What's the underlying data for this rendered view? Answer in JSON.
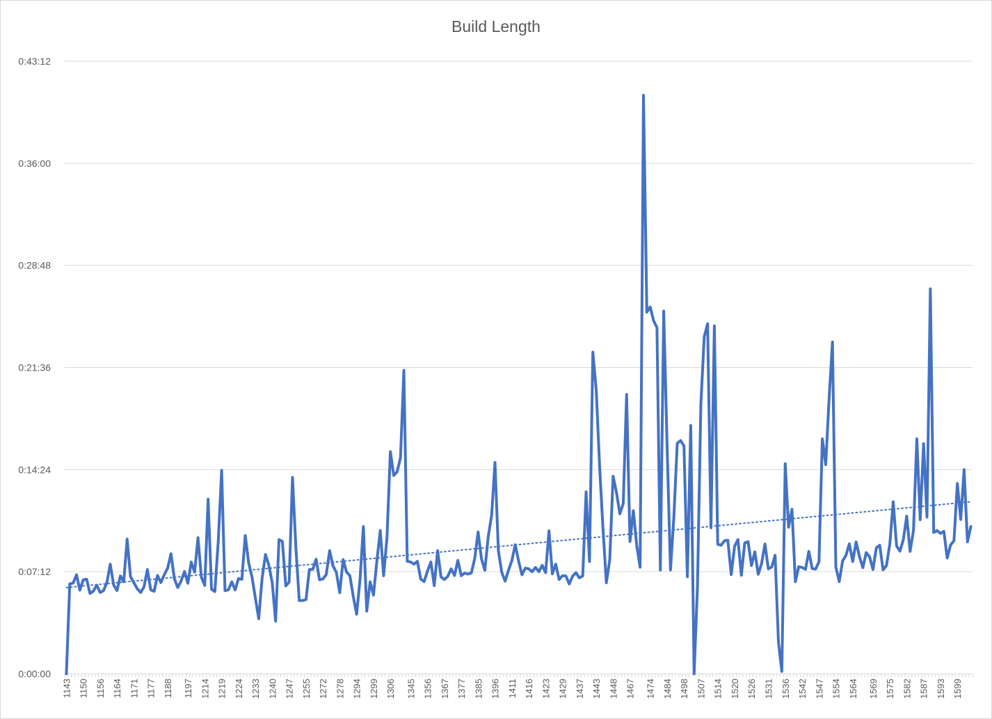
{
  "chart_data": {
    "type": "line",
    "title": "Build Length",
    "xlabel": "",
    "ylabel": "",
    "ylim_seconds": [
      0,
      2592
    ],
    "y_ticks": [
      "0:00:00",
      "0:07:12",
      "0:14:24",
      "0:21:36",
      "0:28:48",
      "0:36:00",
      "0:43:12"
    ],
    "x_tick_labels": [
      "1143",
      "1150",
      "1156",
      "1164",
      "1171",
      "1177",
      "1188",
      "1197",
      "1214",
      "1219",
      "1224",
      "1233",
      "1240",
      "1247",
      "1255",
      "1272",
      "1278",
      "1294",
      "1299",
      "1306",
      "1345",
      "1356",
      "1367",
      "1377",
      "1385",
      "1396",
      "1411",
      "1416",
      "1423",
      "1429",
      "1437",
      "1443",
      "1448",
      "1467",
      "1474",
      "1484",
      "1498",
      "1507",
      "1514",
      "1520",
      "1526",
      "1531",
      "1536",
      "1542",
      "1547",
      "1554",
      "1564",
      "1569",
      "1575",
      "1582",
      "1587",
      "1593",
      "1599"
    ],
    "grid": "horizontal",
    "legend": "none",
    "trendline": {
      "type": "linear",
      "style": "dotted",
      "start": "0:06:05",
      "end": "0:12:08"
    },
    "series_color": "#4472C4",
    "series": [
      {
        "values": [
          "0:00:00",
          "0:06:20",
          "0:06:24",
          "0:06:59",
          "0:05:54",
          "0:06:38",
          "0:06:40",
          "0:05:40",
          "0:05:50",
          "0:06:15",
          "0:05:44",
          "0:05:52",
          "0:06:26",
          "0:07:44",
          "0:06:16",
          "0:05:52",
          "0:06:54",
          "0:06:30",
          "0:09:30",
          "0:06:51",
          "0:06:25",
          "0:06:00",
          "0:05:44",
          "0:06:08",
          "0:07:21",
          "0:05:55",
          "0:05:49",
          "0:06:56",
          "0:06:26",
          "0:06:59",
          "0:07:27",
          "0:08:28",
          "0:06:42",
          "0:06:05",
          "0:06:33",
          "0:07:13",
          "0:06:23",
          "0:07:53",
          "0:07:10",
          "0:09:36",
          "0:06:48",
          "0:06:14",
          "0:12:19",
          "0:05:58",
          "0:05:48",
          "0:09:21",
          "0:14:21",
          "0:05:52",
          "0:05:55",
          "0:06:29",
          "0:05:55",
          "0:06:43",
          "0:06:40",
          "0:09:45",
          "0:07:50",
          "0:06:50",
          "0:05:21",
          "0:03:53",
          "0:06:45",
          "0:08:25",
          "0:07:39",
          "0:06:25",
          "0:03:43",
          "0:09:28",
          "0:09:20",
          "0:06:12",
          "0:06:28",
          "0:13:51",
          "0:08:55",
          "0:05:10",
          "0:05:10",
          "0:05:14",
          "0:07:21",
          "0:07:22",
          "0:08:05",
          "0:06:38",
          "0:06:41",
          "0:07:00",
          "0:08:41",
          "0:07:37",
          "0:07:09",
          "0:05:43",
          "0:08:03",
          "0:07:11",
          "0:06:55",
          "0:05:28",
          "0:04:12",
          "0:06:37",
          "0:10:23",
          "0:04:25",
          "0:06:29",
          "0:05:33",
          "0:07:57",
          "0:10:06",
          "0:06:55",
          "0:09:37",
          "0:15:40",
          "0:13:59",
          "0:14:15",
          "0:15:14",
          "0:21:24",
          "0:07:56",
          "0:07:53",
          "0:07:44",
          "0:07:56",
          "0:06:41",
          "0:06:30",
          "0:07:15",
          "0:07:53",
          "0:06:13",
          "0:08:41",
          "0:06:50",
          "0:06:39",
          "0:06:52",
          "0:07:24",
          "0:06:56",
          "0:08:00",
          "0:06:55",
          "0:07:06",
          "0:07:02",
          "0:07:07",
          "0:08:08",
          "0:10:00",
          "0:08:06",
          "0:07:18",
          "0:09:41",
          "0:11:10",
          "0:14:54",
          "0:08:41",
          "0:07:10",
          "0:06:32",
          "0:07:18",
          "0:07:59",
          "0:09:06",
          "0:07:57",
          "0:06:59",
          "0:07:27",
          "0:07:24",
          "0:07:12",
          "0:07:30",
          "0:07:12",
          "0:07:39",
          "0:07:08",
          "0:10:05",
          "0:07:03",
          "0:07:44",
          "0:06:39",
          "0:06:55",
          "0:06:54",
          "0:06:20",
          "0:06:53",
          "0:07:08",
          "0:06:46",
          "0:06:54",
          "0:12:50",
          "0:07:55",
          "0:22:41",
          "0:20:01",
          "0:14:38",
          "0:10:15",
          "0:06:25",
          "0:08:03",
          "0:13:56",
          "0:12:47",
          "0:11:17",
          "0:12:00",
          "0:19:42",
          "0:09:20",
          "0:11:30",
          "0:09:02",
          "0:07:31",
          "0:40:48",
          "0:25:30",
          "0:25:52",
          "0:24:54",
          "0:24:25",
          "0:07:19",
          "0:25:35",
          "0:16:02",
          "0:07:19",
          "0:11:02",
          "0:16:15",
          "0:16:27",
          "0:16:04",
          "0:06:51",
          "0:17:31",
          "0:00:00",
          "0:06:09",
          "0:18:59",
          "0:23:46",
          "0:24:41",
          "0:10:18",
          "0:24:32",
          "0:09:08",
          "0:09:04",
          "0:09:23",
          "0:09:25",
          "0:07:00",
          "0:09:00",
          "0:09:28",
          "0:06:57",
          "0:09:14",
          "0:09:19",
          "0:07:38",
          "0:08:36",
          "0:07:01",
          "0:07:47",
          "0:09:09",
          "0:07:24",
          "0:07:32",
          "0:08:22",
          "0:02:12",
          "0:00:10",
          "0:14:49",
          "0:10:20",
          "0:11:36",
          "0:06:30",
          "0:07:33",
          "0:07:30",
          "0:07:22",
          "0:08:38",
          "0:07:25",
          "0:07:23",
          "0:07:54",
          "0:16:34",
          "0:14:45",
          "0:19:24",
          "0:23:24",
          "0:07:31",
          "0:06:30",
          "0:07:57",
          "0:08:21",
          "0:09:10",
          "0:07:55",
          "0:09:18",
          "0:08:16",
          "0:07:29",
          "0:08:33",
          "0:08:15",
          "0:07:21",
          "0:08:53",
          "0:09:04",
          "0:07:20",
          "0:07:38",
          "0:09:10",
          "0:12:08",
          "0:09:01",
          "0:08:39",
          "0:09:28",
          "0:11:07",
          "0:08:38",
          "0:10:06",
          "0:16:34",
          "0:10:52",
          "0:16:14",
          "0:11:03",
          "0:27:09",
          "0:09:58",
          "0:10:06",
          "0:09:54",
          "0:10:03",
          "0:08:10",
          "0:09:05",
          "0:09:23",
          "0:13:25",
          "0:10:53",
          "0:14:24",
          "0:09:18",
          "0:10:23"
        ]
      }
    ]
  }
}
